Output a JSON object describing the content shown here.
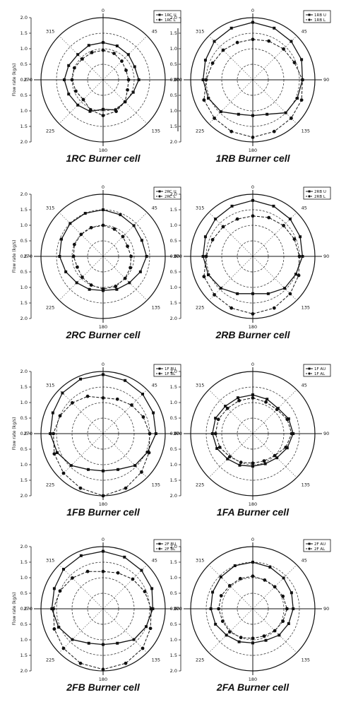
{
  "angle_labels": [
    "0",
    "45",
    "90",
    "135",
    "180",
    "225",
    "270",
    "315"
  ],
  "r_ticks": [
    "2.0",
    "1.5",
    "1.0",
    "0.5",
    "0.0",
    "0.5",
    "1.0",
    "1.5",
    "2.0"
  ],
  "ylabel": "Flow rate (kg/s)",
  "chart_data": [
    {
      "type": "polar",
      "caption": "1RC Burner cell",
      "rlim": [
        0,
        2.0
      ],
      "show_ylabel": true,
      "series": [
        {
          "name": "1RC U",
          "marker": "square",
          "theta": [
            0,
            22.5,
            45,
            67.5,
            90,
            112.5,
            135,
            157.5,
            180,
            202.5,
            225,
            247.5,
            270,
            292.5,
            315,
            337.5
          ],
          "r": [
            1.2,
            1.18,
            1.15,
            1.1,
            1.15,
            1.05,
            1.0,
            1.05,
            0.95,
            1.1,
            1.15,
            1.2,
            1.25,
            1.2,
            1.15,
            1.2
          ]
        },
        {
          "name": "1RC L",
          "marker": "circle",
          "theta": [
            0,
            22.5,
            45,
            67.5,
            90,
            112.5,
            135,
            157.5,
            180,
            202.5,
            225,
            247.5,
            270,
            292.5,
            315,
            337.5
          ],
          "r": [
            0.95,
            0.92,
            0.85,
            0.8,
            0.82,
            0.85,
            1.0,
            1.1,
            1.15,
            1.05,
            0.9,
            0.95,
            1.0,
            1.0,
            0.95,
            0.95
          ]
        }
      ]
    },
    {
      "type": "polar",
      "caption": "1RB Burner cell",
      "rlim": [
        0,
        2.0
      ],
      "show_ylabel": false,
      "series": [
        {
          "name": "1RB U",
          "marker": "square",
          "theta": [
            0,
            22.5,
            45,
            67.5,
            90,
            112.5,
            135,
            157.5,
            180,
            202.5,
            225,
            247.5,
            270,
            292.5,
            315,
            337.5
          ],
          "r": [
            1.85,
            1.8,
            1.75,
            1.7,
            1.6,
            1.55,
            1.5,
            1.2,
            1.15,
            1.2,
            1.45,
            1.55,
            1.6,
            1.65,
            1.75,
            1.8
          ]
        },
        {
          "name": "1RB L",
          "marker": "circle",
          "theta": [
            0,
            22.5,
            45,
            67.5,
            90,
            112.5,
            135,
            157.5,
            180,
            202.5,
            225,
            247.5,
            270,
            292.5,
            315,
            337.5
          ],
          "r": [
            1.3,
            1.35,
            1.4,
            1.45,
            1.6,
            1.7,
            1.75,
            1.8,
            1.85,
            1.8,
            1.75,
            1.7,
            1.5,
            1.4,
            1.35,
            1.3
          ]
        }
      ]
    },
    {
      "type": "polar",
      "caption": "2RC Burner cell",
      "rlim": [
        0,
        2.0
      ],
      "show_ylabel": true,
      "series": [
        {
          "name": "2RC U",
          "marker": "square",
          "theta": [
            0,
            22.5,
            45,
            67.5,
            90,
            112.5,
            135,
            157.5,
            180,
            202.5,
            225,
            247.5,
            270,
            292.5,
            315,
            337.5
          ],
          "r": [
            1.5,
            1.45,
            1.4,
            1.35,
            1.4,
            1.3,
            1.2,
            1.15,
            1.1,
            1.15,
            1.2,
            1.3,
            1.4,
            1.45,
            1.5,
            1.5
          ]
        },
        {
          "name": "2RC L",
          "marker": "circle",
          "theta": [
            0,
            22.5,
            45,
            67.5,
            90,
            112.5,
            135,
            157.5,
            180,
            202.5,
            225,
            247.5,
            270,
            292.5,
            315,
            337.5
          ],
          "r": [
            1.0,
            0.95,
            0.9,
            0.85,
            0.9,
            0.95,
            1.0,
            1.05,
            1.05,
            1.0,
            0.95,
            0.9,
            0.95,
            1.0,
            1.0,
            1.0
          ]
        }
      ]
    },
    {
      "type": "polar",
      "caption": "2RB Burner cell",
      "rlim": [
        0,
        2.0
      ],
      "show_ylabel": false,
      "series": [
        {
          "name": "2RB U",
          "marker": "square",
          "theta": [
            0,
            22.5,
            45,
            67.5,
            90,
            112.5,
            135,
            157.5,
            180,
            202.5,
            225,
            247.5,
            270,
            292.5,
            315,
            337.5
          ],
          "r": [
            1.8,
            1.75,
            1.7,
            1.65,
            1.6,
            1.5,
            1.45,
            1.3,
            1.2,
            1.3,
            1.45,
            1.55,
            1.6,
            1.65,
            1.7,
            1.75
          ]
        },
        {
          "name": "2RB L",
          "marker": "circle",
          "theta": [
            0,
            22.5,
            45,
            67.5,
            90,
            112.5,
            135,
            157.5,
            180,
            202.5,
            225,
            247.5,
            270,
            292.5,
            315,
            337.5
          ],
          "r": [
            1.3,
            1.35,
            1.4,
            1.45,
            1.5,
            1.6,
            1.7,
            1.8,
            1.85,
            1.8,
            1.75,
            1.7,
            1.5,
            1.4,
            1.35,
            1.3
          ]
        }
      ]
    },
    {
      "type": "polar",
      "caption": "1FB Burner cell",
      "rlim": [
        0,
        2.0
      ],
      "show_ylabel": true,
      "series": [
        {
          "name": "1F BU",
          "marker": "square",
          "theta": [
            0,
            22.5,
            45,
            67.5,
            90,
            112.5,
            135,
            157.5,
            180,
            202.5,
            225,
            247.5,
            270,
            292.5,
            315,
            337.5
          ],
          "r": [
            1.9,
            1.85,
            1.8,
            1.75,
            1.7,
            1.55,
            1.45,
            1.25,
            1.2,
            1.25,
            1.45,
            1.6,
            1.7,
            1.75,
            1.85,
            1.9
          ]
        },
        {
          "name": "1F BL",
          "marker": "circle",
          "theta": [
            0,
            22.5,
            45,
            67.5,
            90,
            112.5,
            135,
            157.5,
            180,
            202.5,
            225,
            247.5,
            270,
            292.5,
            315,
            337.5
          ],
          "r": [
            1.15,
            1.2,
            1.3,
            1.4,
            1.5,
            1.6,
            1.75,
            1.9,
            2.0,
            1.9,
            1.8,
            1.7,
            1.6,
            1.5,
            1.4,
            1.3
          ]
        }
      ]
    },
    {
      "type": "polar",
      "caption": "1FA Burner cell",
      "rlim": [
        0,
        2.0
      ],
      "show_ylabel": false,
      "series": [
        {
          "name": "1F AU",
          "marker": "square",
          "theta": [
            0,
            22.5,
            45,
            67.5,
            90,
            112.5,
            135,
            157.5,
            180,
            202.5,
            225,
            247.5,
            270,
            292.5,
            315,
            337.5
          ],
          "r": [
            1.25,
            1.2,
            1.15,
            1.25,
            1.3,
            1.2,
            1.1,
            1.05,
            1.05,
            1.1,
            1.15,
            1.25,
            1.3,
            1.3,
            1.25,
            1.25
          ]
        },
        {
          "name": "1F AL",
          "marker": "circle",
          "theta": [
            0,
            22.5,
            45,
            67.5,
            90,
            112.5,
            135,
            157.5,
            180,
            202.5,
            225,
            247.5,
            270,
            292.5,
            315,
            337.5
          ],
          "r": [
            1.15,
            1.1,
            1.1,
            1.2,
            1.25,
            1.15,
            1.0,
            0.95,
            0.95,
            1.0,
            1.05,
            1.15,
            1.2,
            1.2,
            1.15,
            1.15
          ]
        }
      ]
    },
    {
      "type": "polar",
      "caption": "2FB Burner cell",
      "rlim": [
        0,
        2.0
      ],
      "show_ylabel": true,
      "series": [
        {
          "name": "2F BU",
          "marker": "square",
          "theta": [
            0,
            22.5,
            45,
            67.5,
            90,
            112.5,
            135,
            157.5,
            180,
            202.5,
            225,
            247.5,
            270,
            292.5,
            315,
            337.5
          ],
          "r": [
            1.85,
            1.8,
            1.75,
            1.7,
            1.6,
            1.5,
            1.4,
            1.2,
            1.15,
            1.2,
            1.4,
            1.55,
            1.65,
            1.7,
            1.8,
            1.85
          ]
        },
        {
          "name": "2F BL",
          "marker": "circle",
          "theta": [
            0,
            22.5,
            45,
            67.5,
            90,
            112.5,
            135,
            157.5,
            180,
            202.5,
            225,
            247.5,
            270,
            292.5,
            315,
            337.5
          ],
          "r": [
            1.2,
            1.25,
            1.35,
            1.45,
            1.55,
            1.65,
            1.8,
            1.9,
            1.95,
            1.9,
            1.8,
            1.7,
            1.6,
            1.5,
            1.4,
            1.3
          ]
        }
      ]
    },
    {
      "type": "polar",
      "caption": "2FA Burner cell",
      "rlim": [
        0,
        2.0
      ],
      "show_ylabel": false,
      "series": [
        {
          "name": "2F AU",
          "marker": "square",
          "theta": [
            0,
            22.5,
            45,
            67.5,
            90,
            112.5,
            135,
            157.5,
            180,
            202.5,
            225,
            247.5,
            270,
            292.5,
            315,
            337.5
          ],
          "r": [
            1.5,
            1.45,
            1.4,
            1.35,
            1.3,
            1.25,
            1.2,
            1.1,
            1.1,
            1.15,
            1.2,
            1.3,
            1.35,
            1.4,
            1.45,
            1.5
          ]
        },
        {
          "name": "2F AL",
          "marker": "circle",
          "theta": [
            0,
            22.5,
            45,
            67.5,
            90,
            112.5,
            135,
            157.5,
            180,
            202.5,
            225,
            247.5,
            270,
            292.5,
            315,
            337.5
          ],
          "r": [
            1.05,
            1.0,
            1.0,
            1.05,
            1.1,
            1.05,
            1.0,
            0.95,
            0.95,
            1.0,
            1.05,
            1.05,
            1.1,
            1.1,
            1.05,
            1.05
          ]
        }
      ]
    }
  ]
}
